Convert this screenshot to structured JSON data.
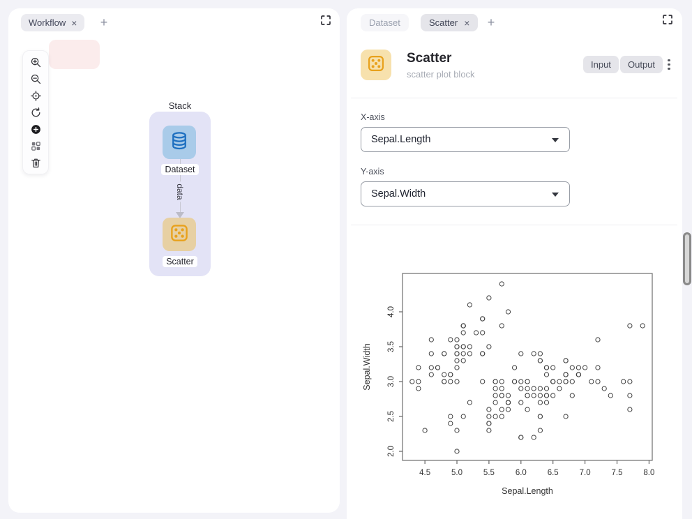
{
  "icons": {
    "close": "×",
    "add_tab": "+"
  },
  "colors": {
    "page_bg": "#f3f3f8",
    "stack_bg": "#e3e3f6",
    "dataset_node": "#a9cbe9",
    "dataset_icon": "#1d6fc0",
    "scatter_node": "#e7d0a3",
    "scatter_icon": "#e8a11c",
    "header_icon_bg": "#f7e1ad",
    "pill_bg": "#e5e5ea"
  },
  "left_panel": {
    "tab": {
      "label": "Workflow"
    },
    "toolbar_icons": [
      "zoom-in",
      "zoom-out",
      "locate",
      "refresh",
      "add-node",
      "group",
      "delete"
    ],
    "canvas": {
      "group_label": "Stack",
      "nodes": [
        {
          "label": "Dataset",
          "icon": "database"
        },
        {
          "label": "Scatter",
          "icon": "scatter-dice"
        }
      ],
      "edge_label": "data"
    }
  },
  "right_panel": {
    "tabs": [
      {
        "label": "Dataset",
        "active": false
      },
      {
        "label": "Scatter",
        "active": true
      }
    ],
    "header": {
      "title": "Scatter",
      "subtitle": "scatter plot block",
      "input_button": "Input",
      "output_button": "Output"
    },
    "form": {
      "x_axis": {
        "label": "X-axis",
        "value": "Sepal.Length"
      },
      "y_axis": {
        "label": "Y-axis",
        "value": "Sepal.Width"
      }
    }
  },
  "chart_data": {
    "type": "scatter",
    "title": "",
    "xlabel": "Sepal.Length",
    "ylabel": "Sepal.Width",
    "xlim": [
      4.15,
      8.05
    ],
    "ylim": [
      1.87,
      4.55
    ],
    "x_ticks": [
      4.5,
      5.0,
      5.5,
      6.0,
      6.5,
      7.0,
      7.5,
      8.0
    ],
    "y_ticks": [
      2.0,
      2.5,
      3.0,
      3.5,
      4.0
    ],
    "marker": "open-circle",
    "grid": false,
    "x": [
      5.1,
      4.9,
      4.7,
      4.6,
      5.0,
      5.4,
      4.6,
      5.0,
      4.4,
      4.9,
      5.4,
      4.8,
      4.8,
      4.3,
      5.8,
      5.7,
      5.4,
      5.1,
      5.7,
      5.1,
      5.4,
      5.1,
      4.6,
      5.1,
      4.8,
      5.0,
      5.0,
      5.2,
      5.2,
      4.7,
      4.8,
      5.4,
      5.2,
      5.5,
      4.9,
      5.0,
      5.5,
      4.9,
      4.4,
      5.1,
      5.0,
      4.5,
      4.4,
      5.0,
      5.1,
      4.8,
      5.1,
      4.6,
      5.3,
      5.0,
      7.0,
      6.4,
      6.9,
      5.5,
      6.5,
      5.7,
      6.3,
      4.9,
      6.6,
      5.2,
      5.0,
      5.9,
      6.0,
      6.1,
      5.6,
      6.7,
      5.6,
      5.8,
      6.2,
      5.6,
      5.9,
      6.1,
      6.3,
      6.1,
      6.4,
      6.6,
      6.8,
      6.7,
      6.0,
      5.7,
      5.5,
      5.5,
      5.8,
      6.0,
      5.4,
      6.0,
      6.7,
      6.3,
      5.6,
      5.5,
      5.5,
      6.1,
      5.8,
      5.0,
      5.6,
      5.7,
      5.7,
      6.2,
      5.1,
      5.7,
      6.3,
      5.8,
      7.1,
      6.3,
      6.5,
      7.6,
      4.9,
      7.3,
      6.7,
      7.2,
      6.5,
      6.4,
      6.8,
      5.7,
      5.8,
      6.4,
      6.5,
      7.7,
      7.7,
      6.0,
      6.9,
      5.6,
      7.7,
      6.3,
      6.7,
      7.2,
      6.2,
      6.1,
      6.4,
      7.2,
      7.4,
      7.9,
      6.4,
      6.3,
      6.1,
      7.7,
      6.3,
      6.4,
      6.0,
      6.9,
      6.7,
      6.9,
      5.8,
      6.8,
      6.7,
      6.7,
      6.3,
      6.5,
      6.2,
      5.9
    ],
    "y": [
      3.5,
      3.0,
      3.2,
      3.1,
      3.6,
      3.9,
      3.4,
      3.4,
      2.9,
      3.1,
      3.7,
      3.4,
      3.0,
      3.0,
      4.0,
      4.4,
      3.9,
      3.5,
      3.8,
      3.8,
      3.4,
      3.7,
      3.6,
      3.3,
      3.4,
      3.0,
      3.4,
      3.5,
      3.4,
      3.2,
      3.1,
      3.4,
      4.1,
      4.2,
      3.1,
      3.2,
      3.5,
      3.6,
      3.0,
      3.4,
      3.5,
      2.3,
      3.2,
      3.5,
      3.8,
      3.0,
      3.8,
      3.2,
      3.7,
      3.3,
      3.2,
      3.2,
      3.1,
      2.3,
      2.8,
      2.8,
      3.3,
      2.4,
      2.9,
      2.7,
      2.0,
      3.0,
      2.2,
      2.9,
      2.9,
      3.1,
      3.0,
      2.7,
      2.2,
      2.5,
      3.2,
      2.8,
      2.5,
      2.8,
      2.9,
      3.0,
      2.8,
      3.0,
      2.9,
      2.6,
      2.4,
      2.4,
      2.7,
      2.7,
      3.0,
      3.4,
      3.1,
      2.3,
      3.0,
      2.5,
      2.6,
      3.0,
      2.6,
      2.3,
      2.7,
      3.0,
      2.9,
      2.9,
      2.5,
      2.8,
      3.3,
      2.7,
      3.0,
      2.9,
      3.0,
      3.0,
      2.5,
      2.9,
      2.5,
      3.6,
      3.2,
      2.7,
      3.0,
      2.5,
      2.8,
      3.2,
      3.0,
      3.8,
      2.6,
      2.2,
      3.2,
      2.8,
      2.8,
      2.7,
      3.3,
      3.2,
      2.8,
      3.0,
      2.8,
      3.0,
      2.8,
      3.8,
      2.8,
      2.8,
      2.6,
      3.0,
      3.4,
      3.1,
      3.0,
      3.1,
      3.1,
      3.1,
      2.7,
      3.2,
      3.3,
      3.0,
      2.5,
      3.0,
      3.4,
      3.0
    ]
  }
}
